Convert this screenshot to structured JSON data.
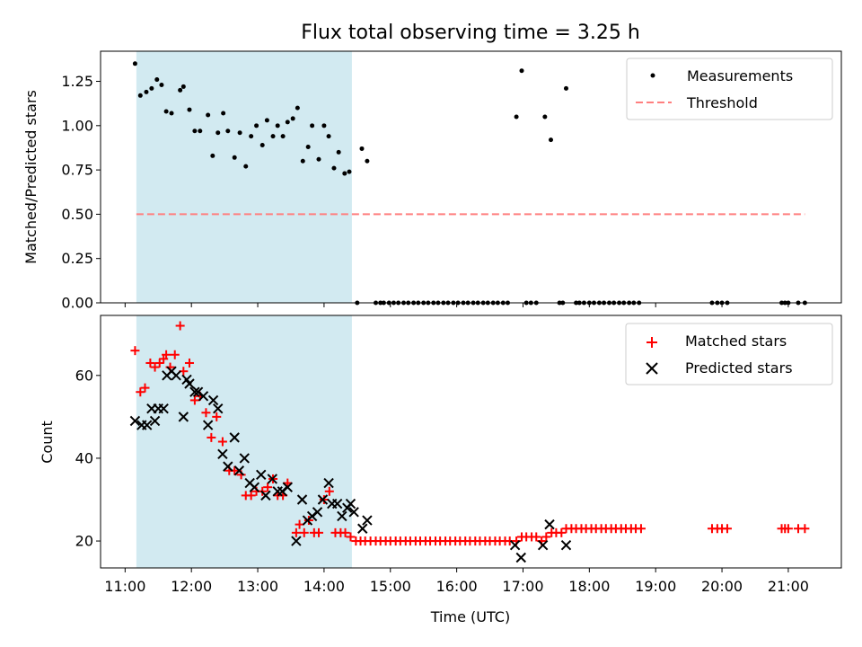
{
  "chart_data": {
    "type": "scatter",
    "title": "Flux total observing time = 3.25 h",
    "shaded_interval_hours": [
      11.17,
      14.42
    ],
    "shade_color": "#add8e6",
    "x_ticks": [
      {
        "v": 11,
        "label": "11:00"
      },
      {
        "v": 12,
        "label": "12:00"
      },
      {
        "v": 13,
        "label": "13:00"
      },
      {
        "v": 14,
        "label": "14:00"
      },
      {
        "v": 15,
        "label": "15:00"
      },
      {
        "v": 16,
        "label": "16:00"
      },
      {
        "v": 17,
        "label": "17:00"
      },
      {
        "v": 18,
        "label": "18:00"
      },
      {
        "v": 19,
        "label": "19:00"
      },
      {
        "v": 20,
        "label": "20:00"
      },
      {
        "v": 21,
        "label": "21:00"
      }
    ],
    "xlabel": "Time (UTC)",
    "xlim": [
      10.63,
      21.8
    ],
    "top": {
      "ylabel": "Matched/Predicted stars",
      "ylim": [
        0,
        1.42
      ],
      "y_ticks": [
        {
          "v": 0,
          "label": "0.00"
        },
        {
          "v": 0.25,
          "label": "0.25"
        },
        {
          "v": 0.5,
          "label": "0.50"
        },
        {
          "v": 0.75,
          "label": "0.75"
        },
        {
          "v": 1.0,
          "label": "1.00"
        },
        {
          "v": 1.25,
          "label": "1.25"
        }
      ],
      "threshold": {
        "label": "Threshold",
        "value": 0.5,
        "x_range": [
          11.17,
          21.25
        ],
        "color": "#ff7f7f"
      },
      "measurements_label": "Measurements",
      "measurements": [
        [
          11.15,
          1.35
        ],
        [
          11.23,
          1.17
        ],
        [
          11.32,
          1.19
        ],
        [
          11.4,
          1.21
        ],
        [
          11.48,
          1.26
        ],
        [
          11.55,
          1.23
        ],
        [
          11.62,
          1.08
        ],
        [
          11.7,
          1.07
        ],
        [
          11.83,
          1.2
        ],
        [
          11.88,
          1.22
        ],
        [
          11.97,
          1.09
        ],
        [
          12.05,
          0.97
        ],
        [
          12.13,
          0.97
        ],
        [
          12.25,
          1.06
        ],
        [
          12.32,
          0.83
        ],
        [
          12.4,
          0.96
        ],
        [
          12.48,
          1.07
        ],
        [
          12.55,
          0.97
        ],
        [
          12.65,
          0.82
        ],
        [
          12.73,
          0.96
        ],
        [
          12.82,
          0.77
        ],
        [
          12.9,
          0.94
        ],
        [
          12.98,
          1.0
        ],
        [
          13.07,
          0.89
        ],
        [
          13.14,
          1.03
        ],
        [
          13.23,
          0.94
        ],
        [
          13.3,
          1.0
        ],
        [
          13.38,
          0.94
        ],
        [
          13.45,
          1.02
        ],
        [
          13.53,
          1.04
        ],
        [
          13.6,
          1.1
        ],
        [
          13.68,
          0.8
        ],
        [
          13.76,
          0.88
        ],
        [
          13.82,
          1.0
        ],
        [
          13.92,
          0.81
        ],
        [
          14.0,
          1.0
        ],
        [
          14.07,
          0.94
        ],
        [
          14.15,
          0.76
        ],
        [
          14.22,
          0.85
        ],
        [
          14.31,
          0.73
        ],
        [
          14.38,
          0.74
        ],
        [
          14.5,
          0
        ],
        [
          14.57,
          0.87
        ],
        [
          14.65,
          0.8
        ],
        [
          14.78,
          0
        ],
        [
          14.85,
          0
        ],
        [
          14.9,
          0
        ],
        [
          14.98,
          0
        ],
        [
          15.05,
          0
        ],
        [
          15.12,
          0
        ],
        [
          15.2,
          0
        ],
        [
          15.27,
          0
        ],
        [
          15.35,
          0
        ],
        [
          15.42,
          0
        ],
        [
          15.5,
          0
        ],
        [
          15.57,
          0
        ],
        [
          15.65,
          0
        ],
        [
          15.72,
          0
        ],
        [
          15.8,
          0
        ],
        [
          15.87,
          0
        ],
        [
          15.95,
          0
        ],
        [
          16.02,
          0
        ],
        [
          16.1,
          0
        ],
        [
          16.17,
          0
        ],
        [
          16.25,
          0
        ],
        [
          16.32,
          0
        ],
        [
          16.4,
          0
        ],
        [
          16.47,
          0
        ],
        [
          16.55,
          0
        ],
        [
          16.62,
          0
        ],
        [
          16.7,
          0
        ],
        [
          16.77,
          0
        ],
        [
          16.9,
          1.05
        ],
        [
          16.98,
          1.31
        ],
        [
          17.05,
          0
        ],
        [
          17.12,
          0
        ],
        [
          17.2,
          0
        ],
        [
          17.33,
          1.05
        ],
        [
          17.42,
          0.92
        ],
        [
          17.55,
          0
        ],
        [
          17.6,
          0
        ],
        [
          17.65,
          1.21
        ],
        [
          17.8,
          0
        ],
        [
          17.85,
          0
        ],
        [
          17.92,
          0
        ],
        [
          18.0,
          0
        ],
        [
          18.07,
          0
        ],
        [
          18.15,
          0
        ],
        [
          18.22,
          0
        ],
        [
          18.3,
          0
        ],
        [
          18.37,
          0
        ],
        [
          18.45,
          0
        ],
        [
          18.52,
          0
        ],
        [
          18.6,
          0
        ],
        [
          18.67,
          0
        ],
        [
          18.75,
          0
        ],
        [
          19.85,
          0
        ],
        [
          19.93,
          0
        ],
        [
          20.0,
          0
        ],
        [
          20.08,
          0
        ],
        [
          20.9,
          0
        ],
        [
          20.95,
          0
        ],
        [
          21.0,
          0
        ],
        [
          21.15,
          0
        ],
        [
          21.25,
          0
        ]
      ]
    },
    "bottom": {
      "ylabel": "Count",
      "ylim": [
        13.5,
        74.5
      ],
      "y_ticks": [
        {
          "v": 20,
          "label": "20"
        },
        {
          "v": 40,
          "label": "40"
        },
        {
          "v": 60,
          "label": "60"
        }
      ],
      "series": [
        {
          "name": "Matched stars",
          "marker": "+",
          "color": "#ff0000",
          "points": [
            [
              11.15,
              66
            ],
            [
              11.23,
              56
            ],
            [
              11.3,
              57
            ],
            [
              11.38,
              63
            ],
            [
              11.45,
              62
            ],
            [
              11.52,
              63
            ],
            [
              11.58,
              64
            ],
            [
              11.62,
              65
            ],
            [
              11.68,
              62
            ],
            [
              11.75,
              65
            ],
            [
              11.83,
              72
            ],
            [
              11.88,
              61
            ],
            [
              11.97,
              63
            ],
            [
              12.05,
              54
            ],
            [
              12.13,
              55
            ],
            [
              12.22,
              51
            ],
            [
              12.3,
              45
            ],
            [
              12.38,
              50
            ],
            [
              12.47,
              44
            ],
            [
              12.57,
              37
            ],
            [
              12.65,
              37
            ],
            [
              12.75,
              36
            ],
            [
              12.82,
              31
            ],
            [
              12.9,
              31
            ],
            [
              12.98,
              32
            ],
            [
              13.07,
              32
            ],
            [
              13.15,
              33
            ],
            [
              13.23,
              35
            ],
            [
              13.3,
              31
            ],
            [
              13.38,
              31
            ],
            [
              13.45,
              34
            ],
            [
              13.58,
              22
            ],
            [
              13.63,
              24
            ],
            [
              13.7,
              22
            ],
            [
              13.77,
              25
            ],
            [
              13.85,
              22
            ],
            [
              13.92,
              22
            ],
            [
              14.0,
              30
            ],
            [
              14.08,
              32
            ],
            [
              14.17,
              22
            ],
            [
              14.25,
              22
            ],
            [
              14.32,
              22
            ],
            [
              14.4,
              21
            ],
            [
              14.48,
              20
            ],
            [
              14.55,
              20
            ],
            [
              14.62,
              20
            ],
            [
              14.7,
              20
            ],
            [
              14.78,
              20
            ],
            [
              14.85,
              20
            ],
            [
              14.93,
              20
            ],
            [
              15.0,
              20
            ],
            [
              15.08,
              20
            ],
            [
              15.15,
              20
            ],
            [
              15.23,
              20
            ],
            [
              15.3,
              20
            ],
            [
              15.38,
              20
            ],
            [
              15.45,
              20
            ],
            [
              15.53,
              20
            ],
            [
              15.6,
              20
            ],
            [
              15.68,
              20
            ],
            [
              15.75,
              20
            ],
            [
              15.83,
              20
            ],
            [
              15.9,
              20
            ],
            [
              15.98,
              20
            ],
            [
              16.05,
              20
            ],
            [
              16.13,
              20
            ],
            [
              16.2,
              20
            ],
            [
              16.28,
              20
            ],
            [
              16.35,
              20
            ],
            [
              16.43,
              20
            ],
            [
              16.5,
              20
            ],
            [
              16.58,
              20
            ],
            [
              16.65,
              20
            ],
            [
              16.73,
              20
            ],
            [
              16.8,
              20
            ],
            [
              16.9,
              20
            ],
            [
              16.98,
              21
            ],
            [
              17.05,
              21
            ],
            [
              17.13,
              21
            ],
            [
              17.2,
              21
            ],
            [
              17.28,
              20
            ],
            [
              17.35,
              21
            ],
            [
              17.43,
              22
            ],
            [
              17.5,
              22
            ],
            [
              17.58,
              22
            ],
            [
              17.65,
              23
            ],
            [
              17.73,
              23
            ],
            [
              17.8,
              23
            ],
            [
              17.88,
              23
            ],
            [
              17.95,
              23
            ],
            [
              18.03,
              23
            ],
            [
              18.1,
              23
            ],
            [
              18.18,
              23
            ],
            [
              18.25,
              23
            ],
            [
              18.33,
              23
            ],
            [
              18.4,
              23
            ],
            [
              18.48,
              23
            ],
            [
              18.55,
              23
            ],
            [
              18.63,
              23
            ],
            [
              18.7,
              23
            ],
            [
              18.78,
              23
            ],
            [
              19.85,
              23
            ],
            [
              19.93,
              23
            ],
            [
              20.0,
              23
            ],
            [
              20.08,
              23
            ],
            [
              20.9,
              23
            ],
            [
              20.95,
              23
            ],
            [
              21.0,
              23
            ],
            [
              21.15,
              23
            ],
            [
              21.25,
              23
            ]
          ]
        },
        {
          "name": "Predicted stars",
          "marker": "x",
          "color": "#000000",
          "points": [
            [
              11.15,
              49
            ],
            [
              11.25,
              48
            ],
            [
              11.33,
              48
            ],
            [
              11.4,
              52
            ],
            [
              11.45,
              49
            ],
            [
              11.5,
              52
            ],
            [
              11.58,
              52
            ],
            [
              11.63,
              60
            ],
            [
              11.7,
              61
            ],
            [
              11.77,
              60
            ],
            [
              11.88,
              50
            ],
            [
              11.93,
              59
            ],
            [
              11.97,
              58
            ],
            [
              12.05,
              56
            ],
            [
              12.1,
              56
            ],
            [
              12.18,
              55
            ],
            [
              12.25,
              48
            ],
            [
              12.33,
              54
            ],
            [
              12.4,
              52
            ],
            [
              12.47,
              41
            ],
            [
              12.55,
              38
            ],
            [
              12.65,
              45
            ],
            [
              12.72,
              37
            ],
            [
              12.8,
              40
            ],
            [
              12.88,
              34
            ],
            [
              12.95,
              33
            ],
            [
              13.05,
              36
            ],
            [
              13.12,
              31
            ],
            [
              13.22,
              35
            ],
            [
              13.3,
              32
            ],
            [
              13.37,
              32
            ],
            [
              13.45,
              33
            ],
            [
              13.58,
              20
            ],
            [
              13.67,
              30
            ],
            [
              13.75,
              25
            ],
            [
              13.82,
              26
            ],
            [
              13.9,
              27
            ],
            [
              13.98,
              30
            ],
            [
              14.07,
              34
            ],
            [
              14.12,
              29
            ],
            [
              14.2,
              29
            ],
            [
              14.27,
              26
            ],
            [
              14.35,
              28
            ],
            [
              14.4,
              29
            ],
            [
              14.45,
              27
            ],
            [
              14.58,
              23
            ],
            [
              14.65,
              25
            ],
            [
              16.88,
              19
            ],
            [
              16.97,
              16
            ],
            [
              17.3,
              19
            ],
            [
              17.4,
              24
            ],
            [
              17.65,
              19
            ]
          ]
        }
      ]
    }
  }
}
